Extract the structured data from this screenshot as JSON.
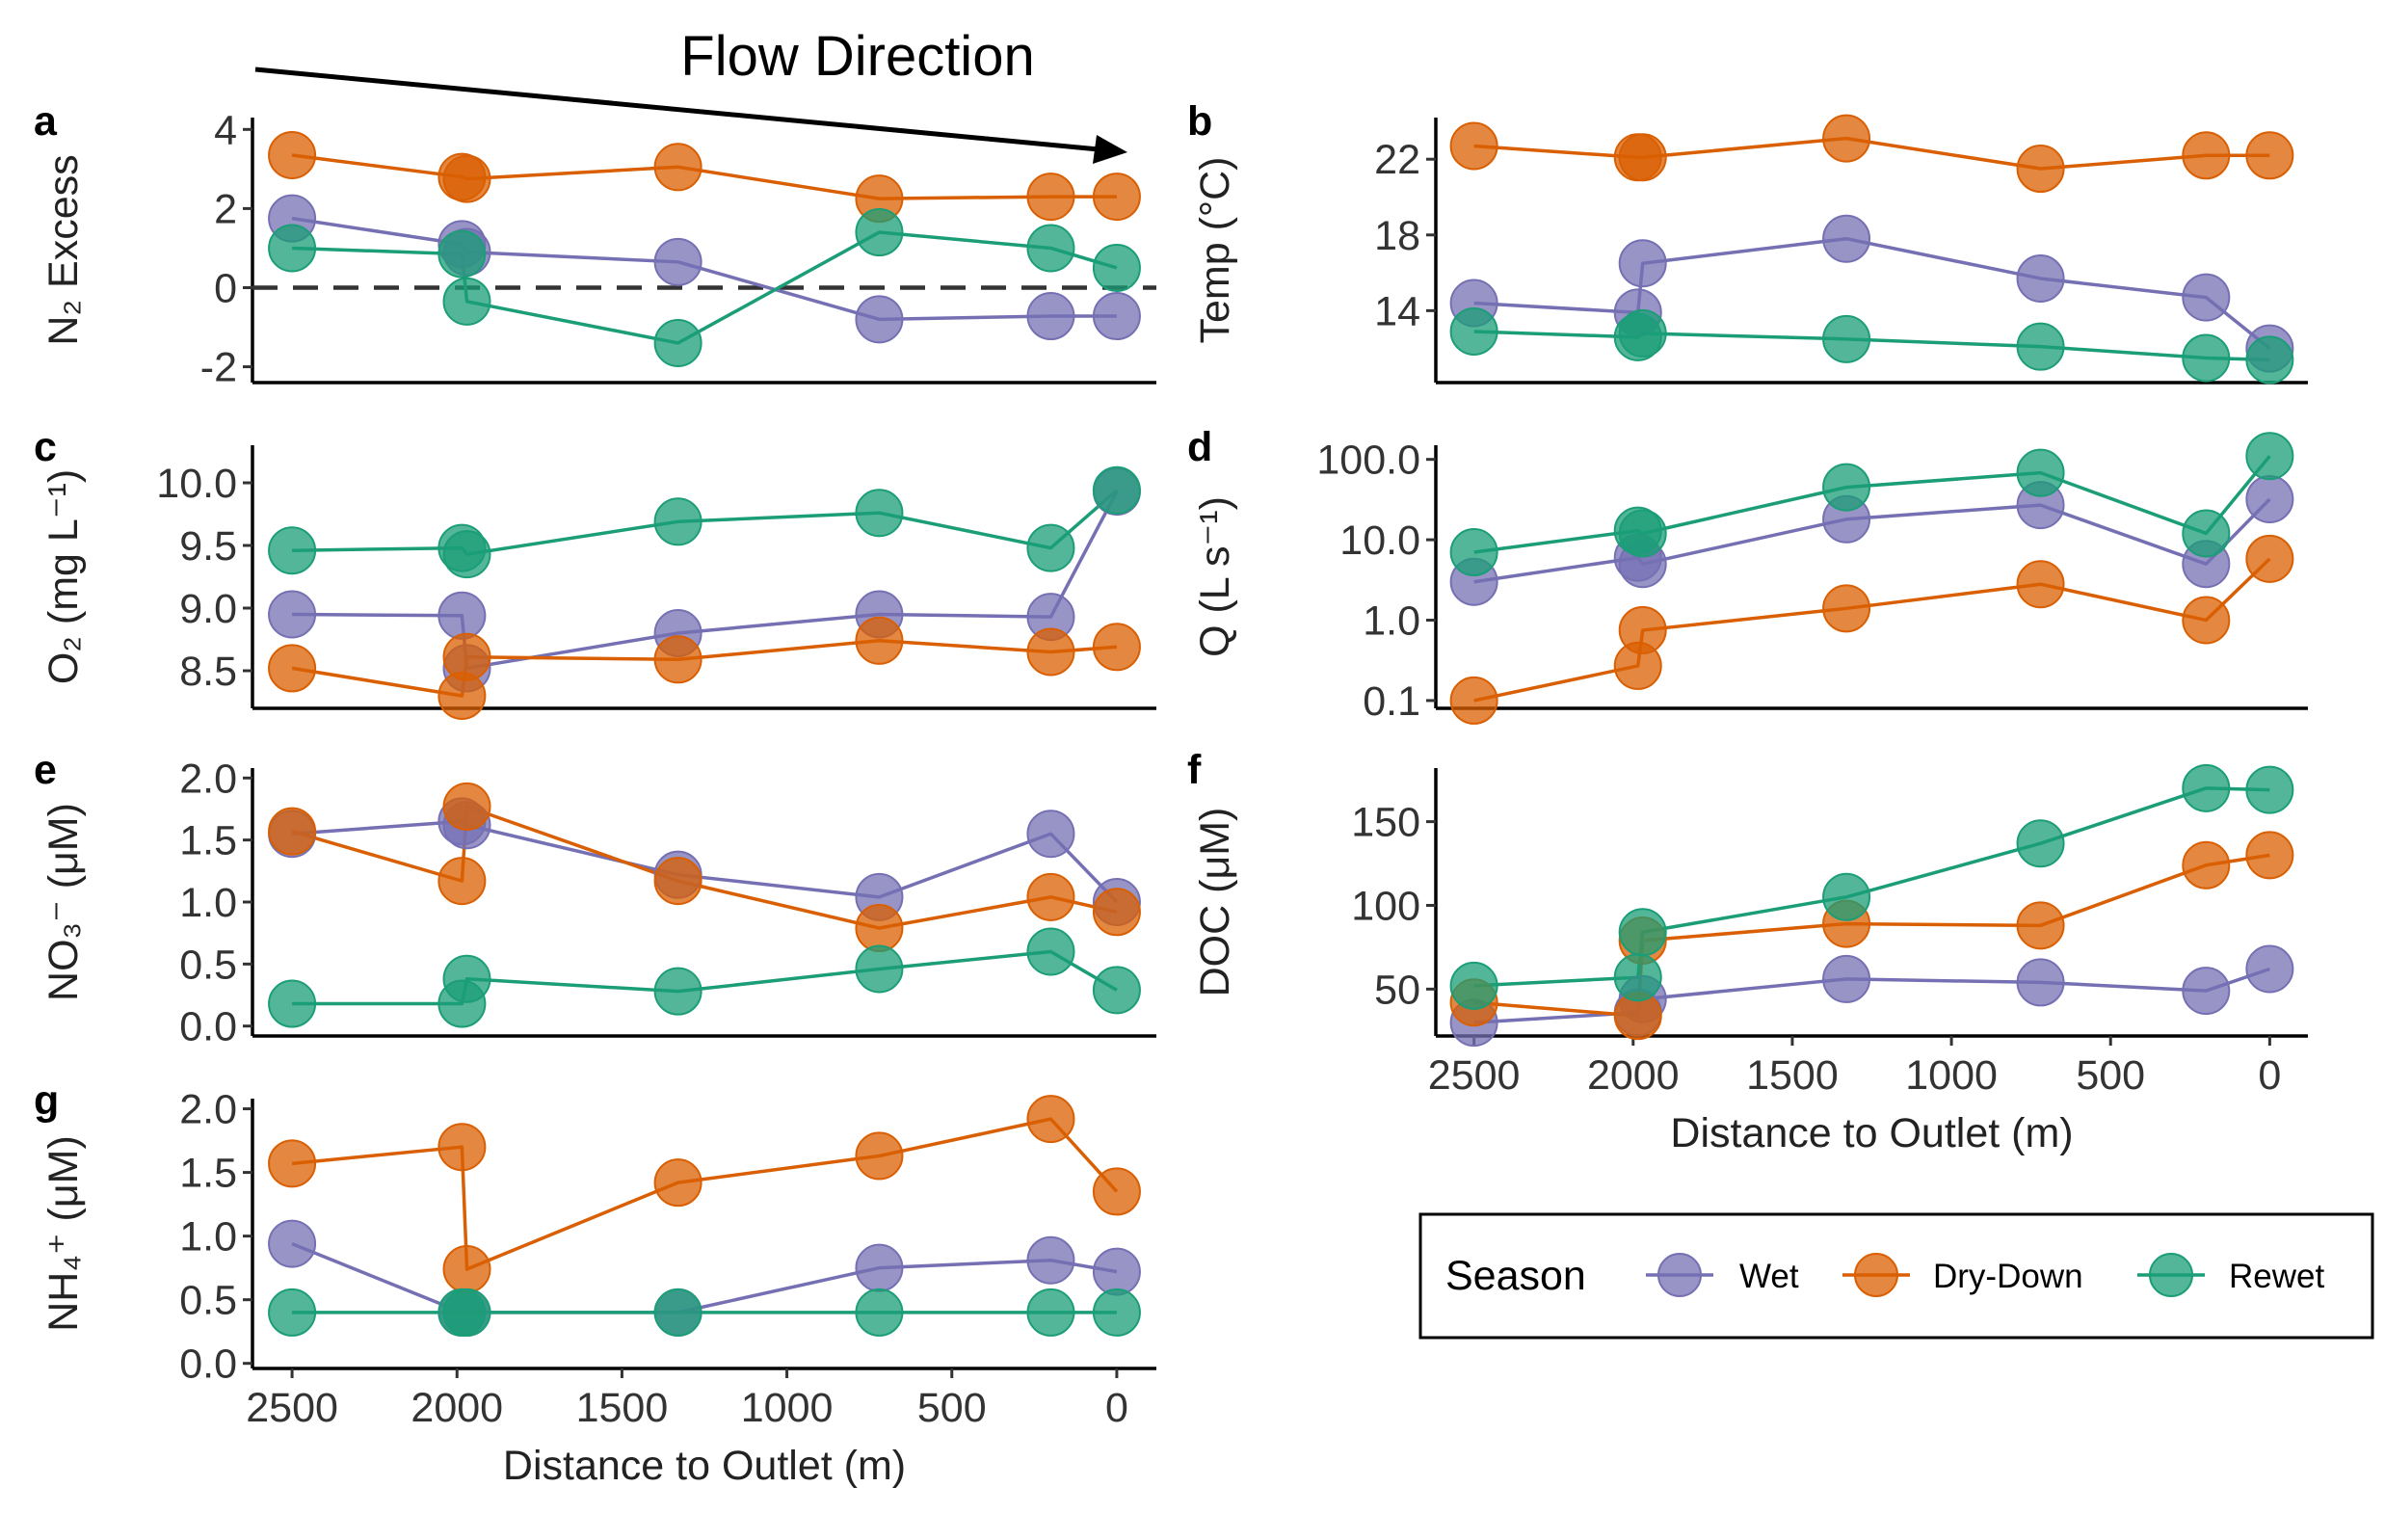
{
  "flow_label": "Flow Direction",
  "legend": {
    "title": "Season",
    "entries": [
      {
        "name": "Wet",
        "color": "#7570b3"
      },
      {
        "name": "Dry-Down",
        "color": "#d95f02"
      },
      {
        "name": "Rewet",
        "color": "#1b9e77"
      }
    ]
  },
  "chart_data": [
    {
      "id": "a",
      "letter": "a",
      "type": "line",
      "ylabel": "N₂ Excess",
      "ylim": [
        -2.4,
        4.3
      ],
      "yticks": [
        -2,
        0,
        2,
        4
      ],
      "ytick_labels": [
        "-2",
        "0",
        "2",
        "4"
      ],
      "xlim": [
        2620,
        -120
      ],
      "reference_line": 0,
      "x_axis_shown": false,
      "series": [
        {
          "name": "Wet",
          "color": "#7570b3",
          "x": [
            2500,
            1985,
            1970,
            1330,
            720,
            200,
            0
          ],
          "y": [
            1.75,
            1.1,
            0.9,
            0.65,
            -0.8,
            -0.72,
            -0.72
          ]
        },
        {
          "name": "Dry-Down",
          "color": "#d95f02",
          "x": [
            2500,
            1985,
            1970,
            1330,
            720,
            200,
            0
          ],
          "y": [
            3.35,
            2.8,
            2.75,
            3.05,
            2.25,
            2.3,
            2.3
          ]
        },
        {
          "name": "Rewet",
          "color": "#1b9e77",
          "x": [
            2500,
            1985,
            1970,
            1330,
            720,
            200,
            0
          ],
          "y": [
            1.0,
            0.85,
            -0.35,
            -1.4,
            1.4,
            1.0,
            0.5
          ]
        }
      ]
    },
    {
      "id": "b",
      "letter": "b",
      "type": "line",
      "ylabel": "Temp (°C)",
      "ylim": [
        10.2,
        24.2
      ],
      "yticks": [
        14,
        18,
        22
      ],
      "ytick_labels": [
        "14",
        "18",
        "22"
      ],
      "xlim": [
        2620,
        -120
      ],
      "x_axis_shown": false,
      "series": [
        {
          "name": "Wet",
          "color": "#7570b3",
          "x": [
            2500,
            1985,
            1970,
            1330,
            720,
            200,
            0
          ],
          "y": [
            14.4,
            13.9,
            16.5,
            17.8,
            15.7,
            14.7,
            12.0
          ]
        },
        {
          "name": "Dry-Down",
          "color": "#d95f02",
          "x": [
            2500,
            1985,
            1970,
            1330,
            720,
            200,
            0
          ],
          "y": [
            22.7,
            22.1,
            22.1,
            23.1,
            21.5,
            22.2,
            22.2
          ]
        },
        {
          "name": "Rewet",
          "color": "#1b9e77",
          "x": [
            2500,
            1985,
            1970,
            1330,
            720,
            200,
            0
          ],
          "y": [
            12.9,
            12.6,
            12.8,
            12.5,
            12.1,
            11.5,
            11.4
          ]
        }
      ]
    },
    {
      "id": "c",
      "letter": "c",
      "type": "line",
      "ylabel": "O₂ (mg L⁻¹)",
      "ylim": [
        8.2,
        10.3
      ],
      "yticks": [
        8.5,
        9.0,
        9.5,
        10.0
      ],
      "ytick_labels": [
        "8.5",
        "9.0",
        "9.5",
        "10.0"
      ],
      "xlim": [
        2620,
        -120
      ],
      "x_axis_shown": false,
      "series": [
        {
          "name": "Wet",
          "color": "#7570b3",
          "x": [
            2500,
            1985,
            1970,
            1330,
            720,
            200,
            0
          ],
          "y": [
            8.95,
            8.94,
            8.52,
            8.8,
            8.95,
            8.93,
            9.93
          ]
        },
        {
          "name": "Dry-Down",
          "color": "#d95f02",
          "x": [
            2500,
            1985,
            1970,
            1330,
            720,
            200,
            0
          ],
          "y": [
            8.52,
            8.3,
            8.61,
            8.59,
            8.74,
            8.65,
            8.69
          ]
        },
        {
          "name": "Rewet",
          "color": "#1b9e77",
          "x": [
            2500,
            1985,
            1970,
            1330,
            720,
            200,
            0
          ],
          "y": [
            9.46,
            9.48,
            9.43,
            9.69,
            9.76,
            9.48,
            9.94
          ]
        }
      ]
    },
    {
      "id": "d",
      "letter": "d",
      "type": "line",
      "ylabel": "Q (L s⁻¹)",
      "yscale": "log",
      "ylim": [
        0.08,
        150
      ],
      "yticks": [
        0.1,
        1,
        10,
        100
      ],
      "ytick_labels": [
        "0.1",
        "1.0",
        "10.0",
        "100.0"
      ],
      "xlim": [
        2620,
        -120
      ],
      "x_axis_shown": false,
      "series": [
        {
          "name": "Wet",
          "color": "#7570b3",
          "x": [
            2500,
            1985,
            1970,
            1330,
            720,
            200,
            0
          ],
          "y": [
            3.0,
            6.0,
            5.0,
            18.0,
            27.0,
            5.0,
            32.0
          ]
        },
        {
          "name": "Dry-Down",
          "color": "#d95f02",
          "x": [
            2500,
            1985,
            1970,
            1330,
            720,
            200,
            0
          ],
          "y": [
            0.1,
            0.27,
            0.75,
            1.4,
            2.8,
            1.0,
            5.8
          ]
        },
        {
          "name": "Rewet",
          "color": "#1b9e77",
          "x": [
            2500,
            1985,
            1970,
            1330,
            720,
            200,
            0
          ],
          "y": [
            7.0,
            13.0,
            12.0,
            45.0,
            68.0,
            12.0,
            110.0
          ]
        }
      ]
    },
    {
      "id": "e",
      "letter": "e",
      "type": "line",
      "ylabel": "NO₃⁻ (μM)",
      "ylim": [
        -0.08,
        2.08
      ],
      "yticks": [
        0.0,
        0.5,
        1.0,
        1.5,
        2.0
      ],
      "ytick_labels": [
        "0.0",
        "0.5",
        "1.0",
        "1.5",
        "2.0"
      ],
      "xlim": [
        2620,
        -120
      ],
      "x_axis_shown": false,
      "series": [
        {
          "name": "Wet",
          "color": "#7570b3",
          "x": [
            2500,
            1985,
            1970,
            1330,
            720,
            200,
            0
          ],
          "y": [
            1.55,
            1.65,
            1.62,
            1.22,
            1.04,
            1.55,
            1.0
          ]
        },
        {
          "name": "Dry-Down",
          "color": "#d95f02",
          "x": [
            2500,
            1985,
            1970,
            1330,
            720,
            200,
            0
          ],
          "y": [
            1.57,
            1.17,
            1.77,
            1.17,
            0.79,
            1.04,
            0.92
          ]
        },
        {
          "name": "Rewet",
          "color": "#1b9e77",
          "x": [
            2500,
            1985,
            1970,
            1330,
            720,
            200,
            0
          ],
          "y": [
            0.18,
            0.18,
            0.38,
            0.28,
            0.46,
            0.6,
            0.29
          ]
        }
      ]
    },
    {
      "id": "f",
      "letter": "f",
      "type": "line",
      "ylabel": "DOC (μM)",
      "ylim": [
        22,
        182
      ],
      "yticks": [
        50,
        100,
        150
      ],
      "ytick_labels": [
        "50",
        "100",
        "150"
      ],
      "xlim": [
        2620,
        -120
      ],
      "x_axis_shown": true,
      "xticks": [
        2500,
        2000,
        1500,
        1000,
        500,
        0
      ],
      "xtick_labels": [
        "2500",
        "2000",
        "1500",
        "1000",
        "500",
        "0"
      ],
      "xlabel": "Distance to Outlet (m)",
      "series": [
        {
          "name": "Wet",
          "color": "#7570b3",
          "x": [
            2500,
            1985,
            1970,
            1330,
            720,
            200,
            0
          ],
          "y": [
            30,
            36,
            44,
            56,
            54,
            49,
            62
          ]
        },
        {
          "name": "Dry-Down",
          "color": "#d95f02",
          "x": [
            2500,
            1985,
            1970,
            1330,
            720,
            200,
            0
          ],
          "y": [
            42,
            34,
            79,
            89,
            88,
            124,
            130
          ]
        },
        {
          "name": "Rewet",
          "color": "#1b9e77",
          "x": [
            2500,
            1985,
            1970,
            1330,
            720,
            200,
            0
          ],
          "y": [
            52,
            57,
            84,
            105,
            137,
            170,
            169
          ]
        }
      ]
    },
    {
      "id": "g",
      "letter": "g",
      "type": "line",
      "ylabel": "NH₄⁺ (μM)",
      "ylim": [
        -0.04,
        2.08
      ],
      "yticks": [
        0.0,
        0.5,
        1.0,
        1.5,
        2.0
      ],
      "ytick_labels": [
        "0.0",
        "0.5",
        "1.0",
        "1.5",
        "2.0"
      ],
      "xlim": [
        2620,
        -120
      ],
      "x_axis_shown": true,
      "xticks": [
        2500,
        2000,
        1500,
        1000,
        500,
        0
      ],
      "xtick_labels": [
        "2500",
        "2000",
        "1500",
        "1000",
        "500",
        "0"
      ],
      "xlabel": "Distance to Outlet (m)",
      "series": [
        {
          "name": "Wet",
          "color": "#7570b3",
          "x": [
            2500,
            1985,
            1970,
            1330,
            720,
            200,
            0
          ],
          "y": [
            0.94,
            0.4,
            0.4,
            0.4,
            0.75,
            0.81,
            0.72
          ]
        },
        {
          "name": "Dry-Down",
          "color": "#d95f02",
          "x": [
            2500,
            1985,
            1970,
            1330,
            720,
            200,
            0
          ],
          "y": [
            1.57,
            1.7,
            0.74,
            1.42,
            1.63,
            1.92,
            1.35
          ]
        },
        {
          "name": "Rewet",
          "color": "#1b9e77",
          "x": [
            2500,
            1985,
            1970,
            1330,
            720,
            200,
            0
          ],
          "y": [
            0.4,
            0.4,
            0.4,
            0.4,
            0.4,
            0.4,
            0.4
          ]
        }
      ]
    }
  ]
}
